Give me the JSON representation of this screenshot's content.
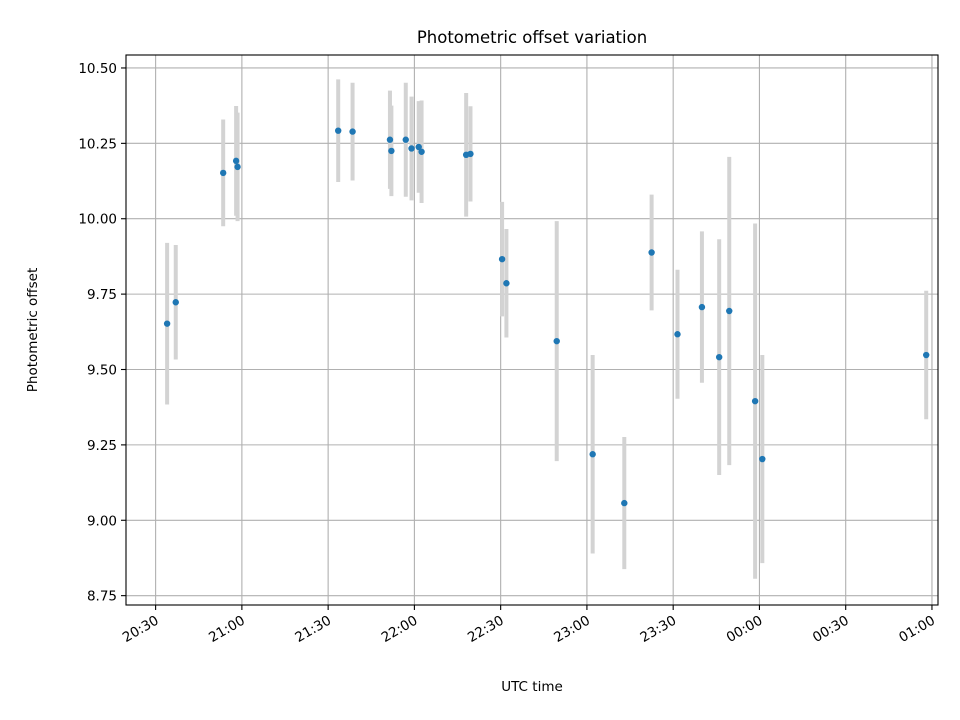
{
  "chart_data": {
    "type": "scatter",
    "title": "Photometric offset variation",
    "xlabel": "UTC time",
    "ylabel": "Photometric offset",
    "x_tick_labels": [
      "20:30",
      "21:00",
      "21:30",
      "22:00",
      "22:30",
      "23:00",
      "23:30",
      "00:00",
      "00:30",
      "01:00"
    ],
    "y_tick_labels": [
      "8.75",
      "9.00",
      "9.25",
      "9.50",
      "9.75",
      "10.00",
      "10.25",
      "10.50"
    ],
    "y_ticks": [
      8.75,
      9.0,
      9.25,
      9.5,
      9.75,
      10.0,
      10.25,
      10.5
    ],
    "x_tick_minutes": [
      1230,
      1260,
      1290,
      1320,
      1350,
      1380,
      1410,
      1440,
      1470,
      1500
    ],
    "xlim_minutes": [
      1219.7,
      1502.1
    ],
    "ylim": [
      8.719,
      10.543
    ],
    "grid": true,
    "errorbar_color": "#d3d3d3",
    "marker_color": "#1f77b4",
    "points": [
      {
        "x": 1234.0,
        "y": 9.652,
        "yerr": 0.268
      },
      {
        "x": 1237.0,
        "y": 9.723,
        "yerr": 0.19
      },
      {
        "x": 1253.5,
        "y": 10.152,
        "yerr": 0.177
      },
      {
        "x": 1258.0,
        "y": 10.192,
        "yerr": 0.182
      },
      {
        "x": 1258.5,
        "y": 10.172,
        "yerr": 0.18
      },
      {
        "x": 1293.5,
        "y": 10.292,
        "yerr": 0.17
      },
      {
        "x": 1298.5,
        "y": 10.289,
        "yerr": 0.162
      },
      {
        "x": 1311.5,
        "y": 10.262,
        "yerr": 0.163
      },
      {
        "x": 1312.0,
        "y": 10.225,
        "yerr": 0.15
      },
      {
        "x": 1317.0,
        "y": 10.262,
        "yerr": 0.189
      },
      {
        "x": 1319.0,
        "y": 10.233,
        "yerr": 0.172
      },
      {
        "x": 1321.5,
        "y": 10.238,
        "yerr": 0.152
      },
      {
        "x": 1322.5,
        "y": 10.222,
        "yerr": 0.17
      },
      {
        "x": 1338.0,
        "y": 10.212,
        "yerr": 0.205
      },
      {
        "x": 1339.5,
        "y": 10.215,
        "yerr": 0.158
      },
      {
        "x": 1350.5,
        "y": 9.866,
        "yerr": 0.19
      },
      {
        "x": 1352.0,
        "y": 9.786,
        "yerr": 0.18
      },
      {
        "x": 1369.5,
        "y": 9.594,
        "yerr": 0.398
      },
      {
        "x": 1382.0,
        "y": 9.219,
        "yerr": 0.329
      },
      {
        "x": 1393.0,
        "y": 9.057,
        "yerr": 0.219
      },
      {
        "x": 1402.5,
        "y": 9.888,
        "yerr": 0.192
      },
      {
        "x": 1411.5,
        "y": 9.617,
        "yerr": 0.214
      },
      {
        "x": 1420.0,
        "y": 9.707,
        "yerr": 0.251
      },
      {
        "x": 1426.0,
        "y": 9.541,
        "yerr": 0.391
      },
      {
        "x": 1429.5,
        "y": 9.694,
        "yerr": 0.511
      },
      {
        "x": 1438.5,
        "y": 9.395,
        "yerr": 0.589
      },
      {
        "x": 1441.0,
        "y": 9.203,
        "yerr": 0.345
      },
      {
        "x": 1498.0,
        "y": 9.548,
        "yerr": 0.213
      }
    ]
  }
}
